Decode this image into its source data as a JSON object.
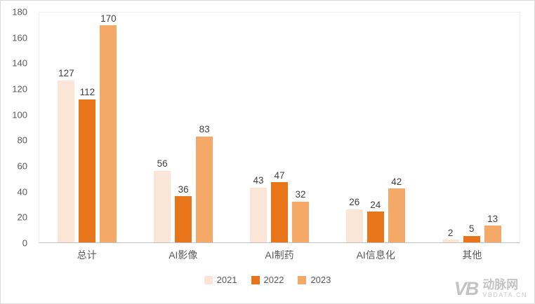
{
  "chart_data": {
    "type": "bar",
    "categories": [
      "总计",
      "AI影像",
      "AI制药",
      "AI信息化",
      "其他"
    ],
    "series": [
      {
        "name": "2021",
        "color": "#fbe5d6",
        "values": [
          127,
          56,
          43,
          26,
          2
        ]
      },
      {
        "name": "2022",
        "color": "#e8751a",
        "values": [
          112,
          36,
          47,
          24,
          5
        ]
      },
      {
        "name": "2023",
        "color": "#f4a968",
        "values": [
          170,
          83,
          32,
          42,
          13
        ]
      }
    ],
    "ylim": [
      0,
      180
    ],
    "yticks": [
      0,
      20,
      40,
      60,
      80,
      100,
      120,
      140,
      160,
      180
    ],
    "grid": false,
    "legend_position": "bottom",
    "title": "",
    "xlabel": "",
    "ylabel": ""
  },
  "watermark": {
    "logo": "VB",
    "name": "动脉网",
    "site": "VBDATA.CN"
  }
}
